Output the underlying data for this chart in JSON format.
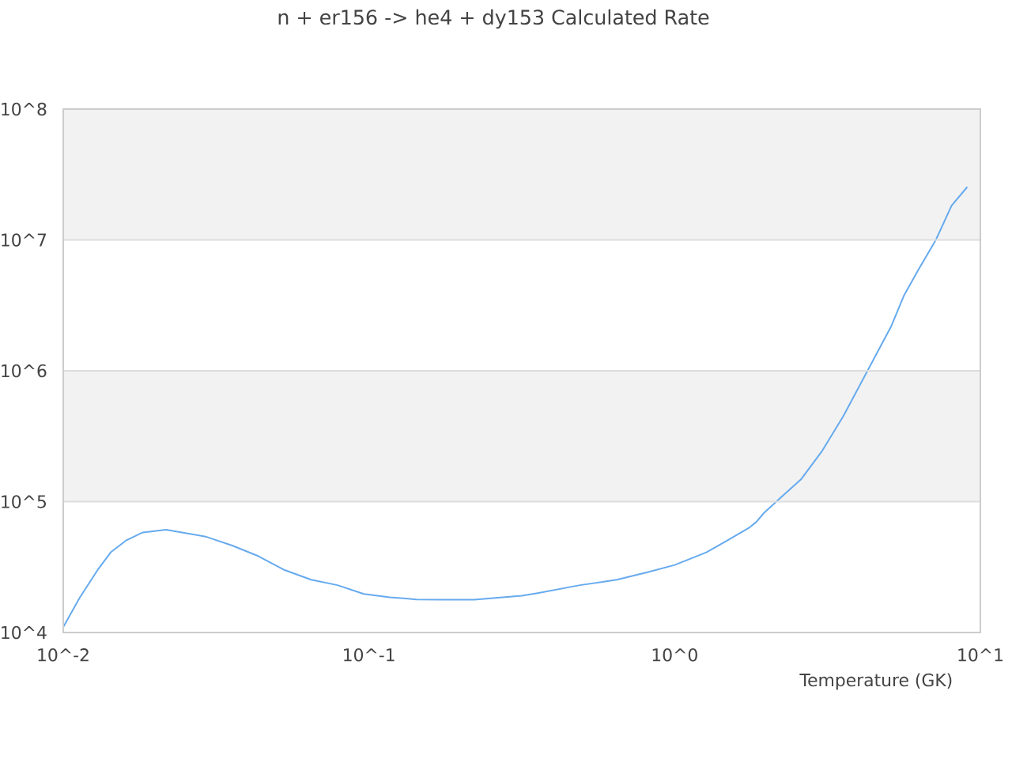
{
  "chart_data": {
    "type": "line",
    "title": "n + er156 -> he4 + dy153 Calculated Rate",
    "xlabel": "Temperature (GK)",
    "x": [
      0.01,
      0.0113,
      0.013,
      0.0143,
      0.0161,
      0.0182,
      0.0217,
      0.0292,
      0.0357,
      0.0434,
      0.053,
      0.0647,
      0.0789,
      0.0962,
      0.117,
      0.143,
      0.175,
      0.221,
      0.316,
      0.356,
      0.49,
      0.647,
      0.82,
      1.0,
      1.27,
      1.49,
      1.75,
      1.85,
      1.96,
      2.21,
      2.59,
      3.04,
      3.56,
      4.26,
      5.1,
      5.63,
      6.22,
      7.15,
      8.05,
      9.06
    ],
    "values": [
      11000,
      18300,
      30400,
      41000,
      50700,
      58200,
      61100,
      54100,
      46200,
      38400,
      30000,
      25300,
      23000,
      19700,
      18600,
      17900,
      17800,
      17800,
      19100,
      20000,
      23000,
      25300,
      29000,
      32800,
      41000,
      50700,
      63000,
      70000,
      82000,
      106000,
      148000,
      245000,
      449000,
      986000,
      2170000,
      3780000,
      5740000,
      10000000,
      18300000,
      25400000
    ],
    "color": "#66aaee",
    "log": "xy",
    "grid": "y",
    "xlim": [
      0.01,
      10
    ],
    "ylim": [
      10000,
      100000000
    ],
    "xticks": [
      {
        "value": 0.01,
        "label": "10^-2"
      },
      {
        "value": 0.1,
        "label": "10^-1"
      },
      {
        "value": 1,
        "label": "10^0"
      },
      {
        "value": 10,
        "label": "10^1"
      }
    ],
    "yticks": [
      {
        "value": 10000,
        "label": "10^4"
      },
      {
        "value": 100000,
        "label": "10^5"
      },
      {
        "value": 1000000,
        "label": "10^6"
      },
      {
        "value": 10000000,
        "label": "10^7"
      },
      {
        "value": 100000000,
        "label": "10^8"
      }
    ],
    "bands": [
      {
        "axis": "y",
        "from": 100000,
        "to": 1000000,
        "color": "#f2f2f2"
      },
      {
        "axis": "y",
        "from": 10000000,
        "to": 100000000,
        "color": "#f2f2f2"
      }
    ]
  }
}
